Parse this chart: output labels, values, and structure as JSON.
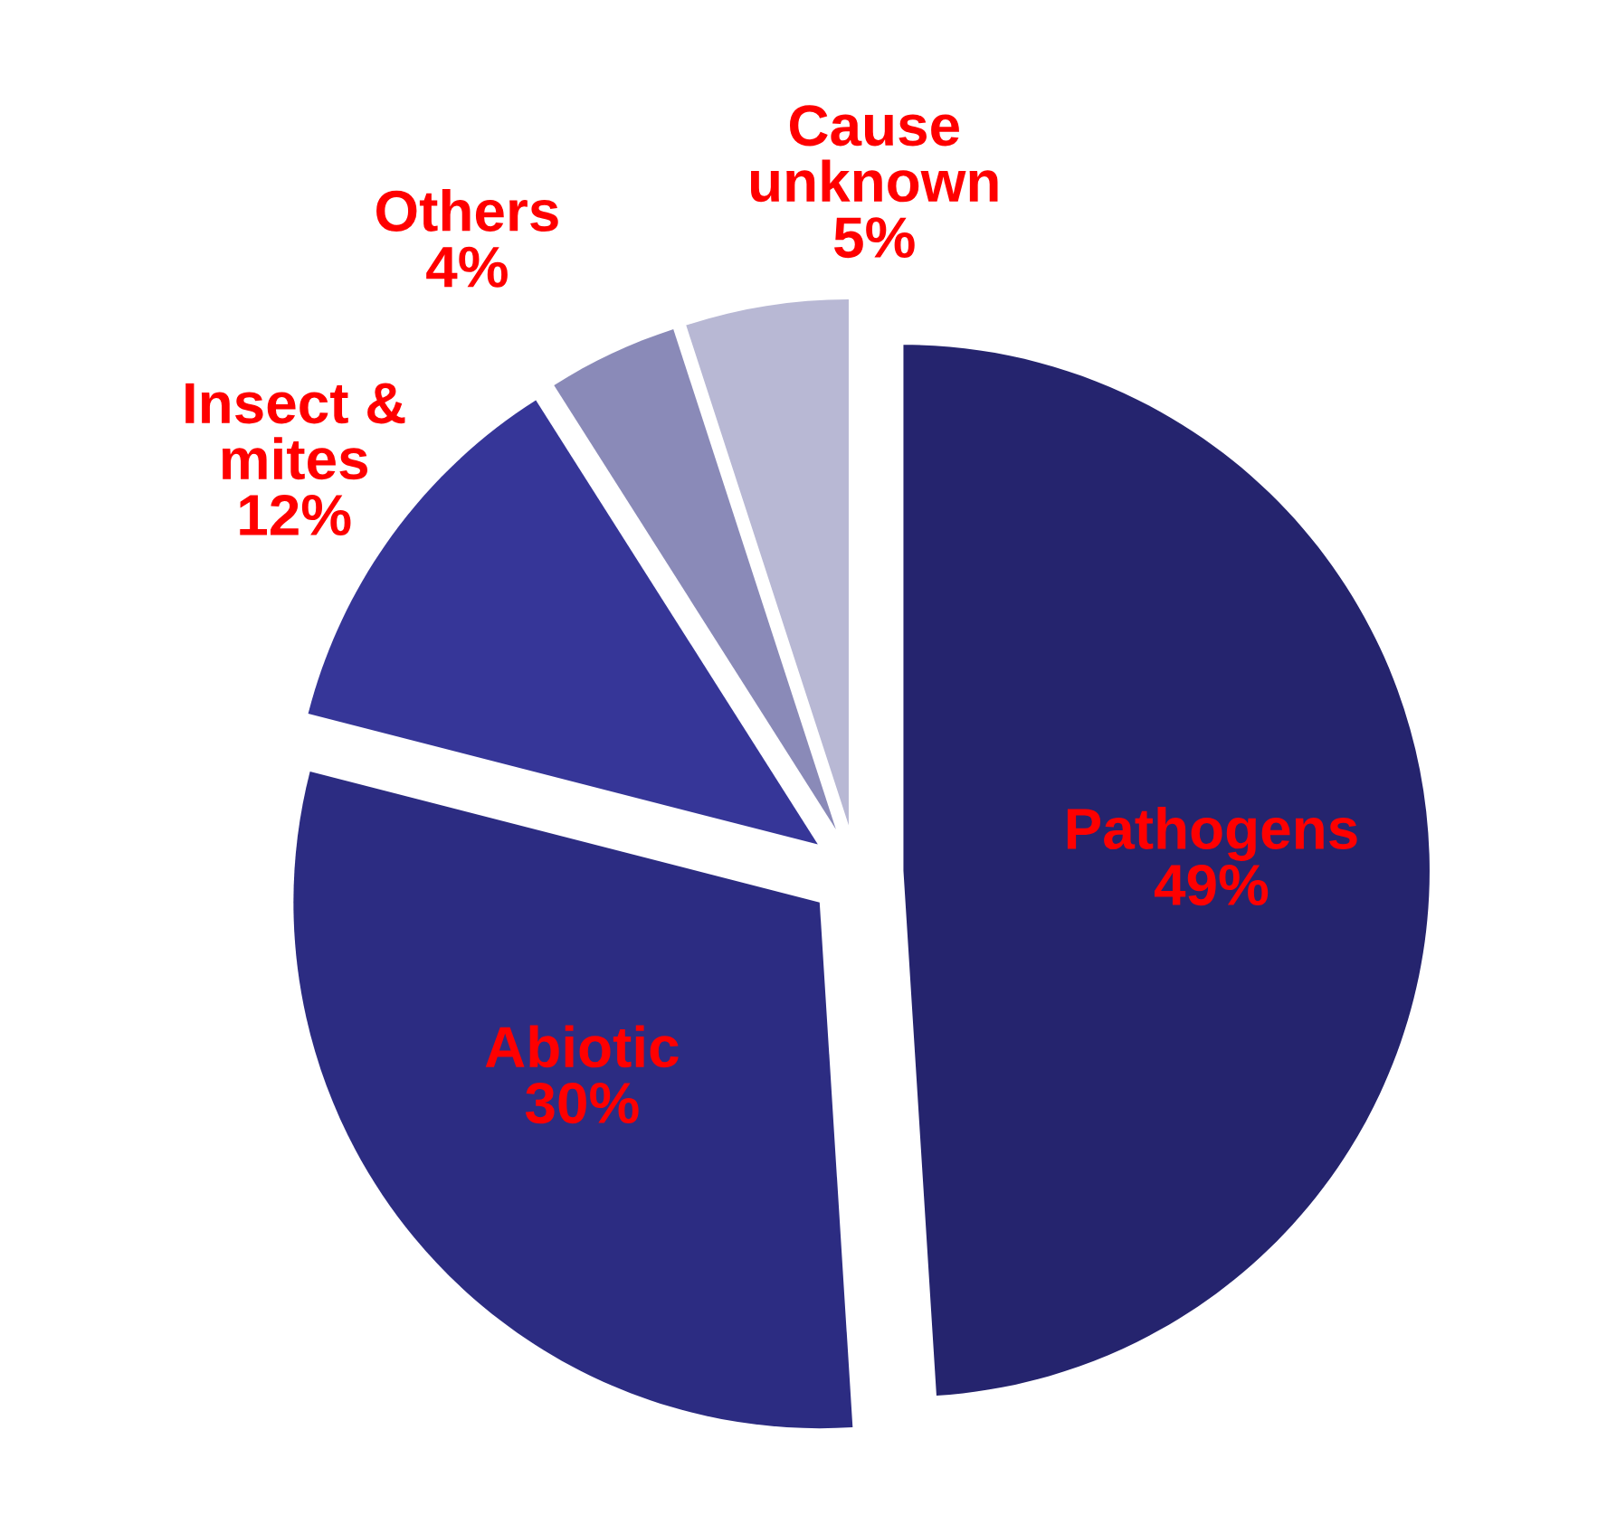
{
  "chart_data": {
    "type": "pie",
    "categories": [
      "Pathogens",
      "Abiotic",
      "Insect &\nmites",
      "Others",
      "Cause\nunknown"
    ],
    "values": [
      49,
      30,
      12,
      4,
      5
    ],
    "value_labels": [
      "49%",
      "30%",
      "12%",
      "4%",
      "5%"
    ],
    "colors": [
      "#25246e",
      "#2c2c82",
      "#363698",
      "#8a8ab8",
      "#b8b8d4"
    ],
    "legend": false
  }
}
